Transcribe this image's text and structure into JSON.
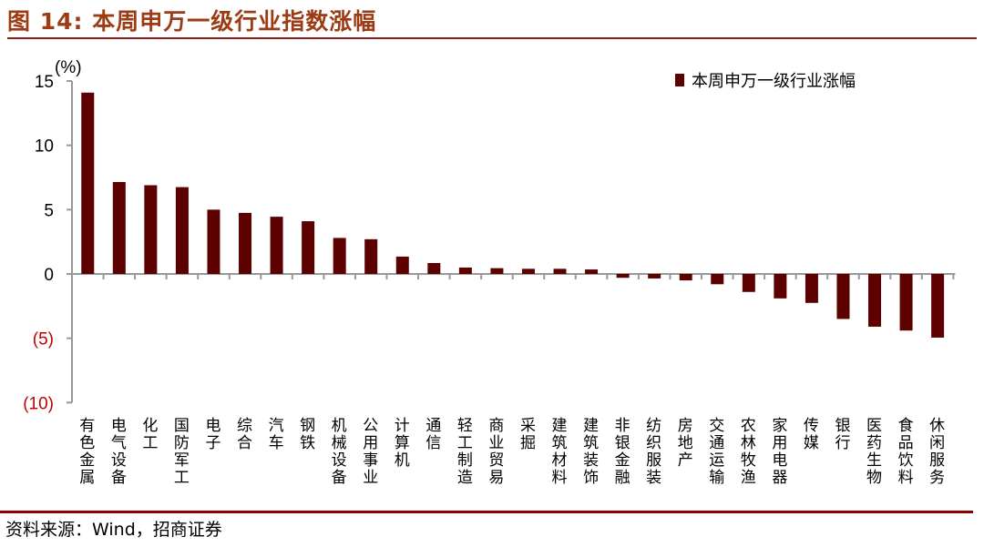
{
  "title": "图 14:  本周申万一级行业指数涨幅",
  "source": "资料来源：Wind，招商证券",
  "chart_data": {
    "type": "bar",
    "title": "本周申万一级行业指数涨幅",
    "ylabel": "(%)",
    "ylim": [
      -10,
      15
    ],
    "yticks": [
      15,
      10,
      5,
      0,
      -5,
      -10
    ],
    "ytick_labels": [
      "15",
      "10",
      "5",
      "0",
      "(5)",
      "(10)"
    ],
    "legend": {
      "label": "本周申万一级行业涨幅",
      "position": "top-right"
    },
    "bar_color": "#5c0000",
    "negative_label_color": "#c00000",
    "grid": false,
    "categories": [
      "有色金属",
      "电气设备",
      "化工",
      "国防军工",
      "电子",
      "综合",
      "汽车",
      "钢铁",
      "机械设备",
      "公用事业",
      "计算机",
      "通信",
      "轻工制造",
      "商业贸易",
      "采掘",
      "建筑材料",
      "建筑装饰",
      "非银金融",
      "纺织服装",
      "房地产",
      "交通运输",
      "农林牧渔",
      "家用电器",
      "传媒",
      "银行",
      "医药生物",
      "食品饮料",
      "休闲服务"
    ],
    "values": [
      14.1,
      7.15,
      6.9,
      6.75,
      5.0,
      4.75,
      4.45,
      4.1,
      2.8,
      2.7,
      1.35,
      0.85,
      0.5,
      0.45,
      0.4,
      0.4,
      0.35,
      -0.3,
      -0.35,
      -0.5,
      -0.8,
      -1.4,
      -1.9,
      -2.25,
      -3.5,
      -4.1,
      -4.4,
      -4.95
    ]
  }
}
